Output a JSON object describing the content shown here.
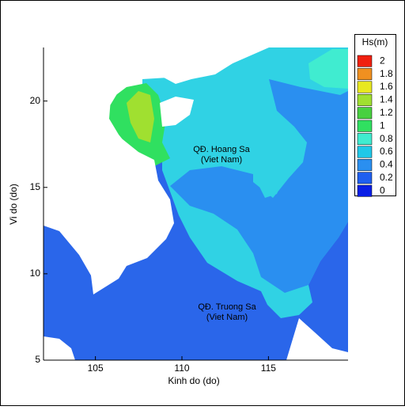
{
  "chart_data": {
    "type": "contour",
    "xlabel": "Kinh do (do)",
    "ylabel": "Vi do (do)",
    "xlim": [
      102,
      119.6
    ],
    "ylim": [
      5,
      23.1
    ],
    "xticks": [
      105,
      110,
      115
    ],
    "yticks": [
      5,
      10,
      15,
      20
    ],
    "colorbar": {
      "title": "Hs(m)",
      "levels": [
        0,
        0.2,
        0.4,
        0.6,
        0.8,
        1,
        1.2,
        1.4,
        1.6,
        1.8,
        2
      ],
      "colors": [
        "#0a1ee6",
        "#1f5ff0",
        "#2a8ff0",
        "#20c8e8",
        "#40ecd0",
        "#30e060",
        "#48d040",
        "#a0e030",
        "#e8e820",
        "#f09020",
        "#f02010"
      ]
    },
    "annotations": [
      "QĐ. Hoang Sa",
      "(Viet Nam)",
      "QĐ. Truong Sa",
      "(Viet Nam)"
    ]
  }
}
